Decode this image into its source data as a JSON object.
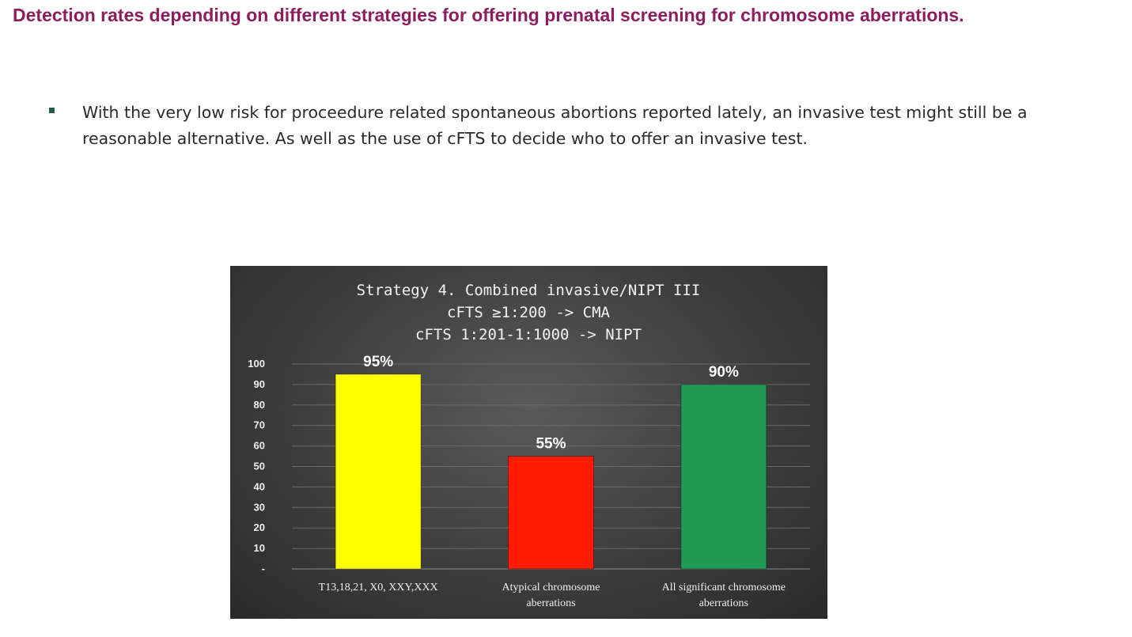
{
  "slide": {
    "title": "Detection rates depending on different strategies for offering prenatal screening for chromosome aberrations.",
    "bullet": "With the very low risk for proceedure related spontaneous abortions reported lately, an invasive test might still be a reasonable alternative. As well as the use of cFTS to decide who to offer an invasive test."
  },
  "chart_data": {
    "type": "bar",
    "title_lines": [
      "Strategy 4. Combined invasive/NIPT III",
      "cFTS ≥1:200 -> CMA",
      "cFTS 1:201-1:1000 -> NIPT"
    ],
    "categories": [
      [
        "T13,18,21, X0, XXY,XXX"
      ],
      [
        "Atypical chromosome",
        "aberrations"
      ],
      [
        "All significant chromosome",
        "aberrations"
      ]
    ],
    "values": [
      95,
      55,
      90
    ],
    "data_labels": [
      "95%",
      "55%",
      "90%"
    ],
    "colors": [
      "#ffff00",
      "#ff1a00",
      "#1f9a55"
    ],
    "yticks": [
      "-",
      "10",
      "20",
      "30",
      "40",
      "50",
      "60",
      "70",
      "80",
      "90",
      "100"
    ],
    "ylim": [
      0,
      100
    ],
    "grid": true,
    "legend": "none",
    "background": "#3f3f3f"
  }
}
